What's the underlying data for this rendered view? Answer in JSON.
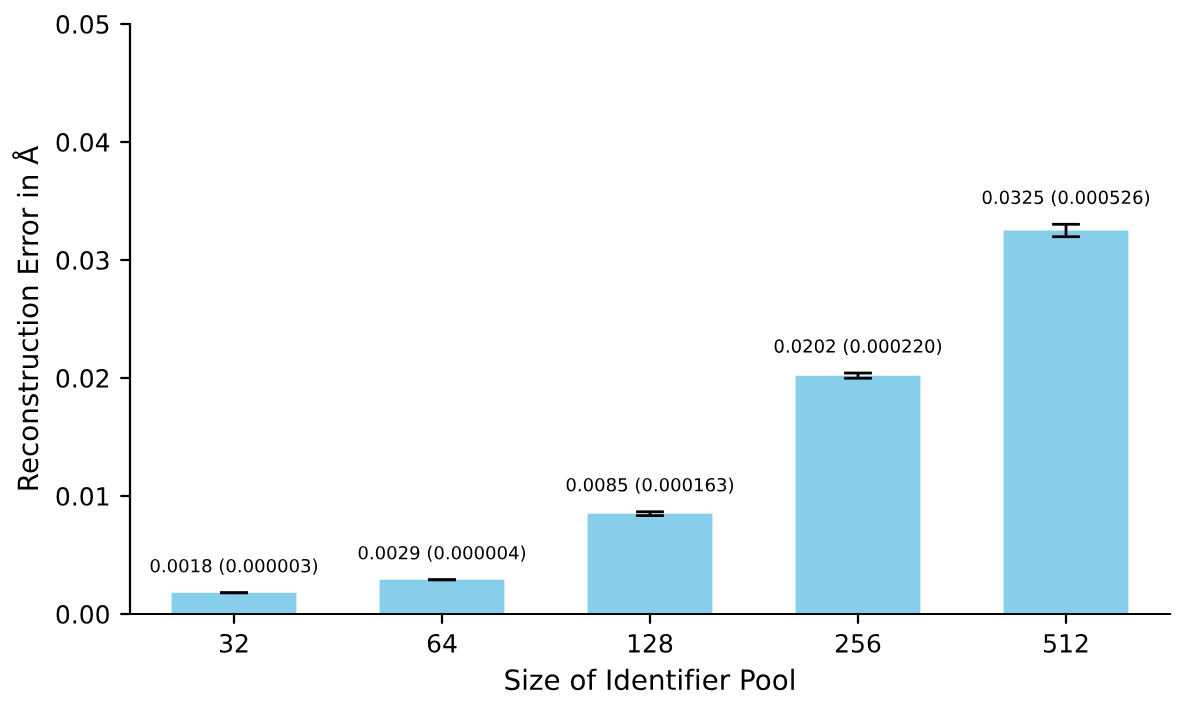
{
  "chart_data": {
    "type": "bar",
    "xlabel": "Size of Identifier Pool",
    "ylabel": "Reconstruction Error in Å",
    "categories": [
      "32",
      "64",
      "128",
      "256",
      "512"
    ],
    "values": [
      0.0018,
      0.0029,
      0.0085,
      0.0202,
      0.0325
    ],
    "errors": [
      3e-06,
      4e-06,
      0.000163,
      0.00022,
      0.000526
    ],
    "value_labels": [
      "0.0018 (0.000003)",
      "0.0029 (0.000004)",
      "0.0085 (0.000163)",
      "0.0202 (0.000220)",
      "0.0325 (0.000526)"
    ],
    "color": "#87ceeb",
    "ylim": [
      0,
      0.05
    ],
    "yticks": [
      {
        "value": 0,
        "label": "0.00"
      },
      {
        "value": 0.01,
        "label": "0.01"
      },
      {
        "value": 0.02,
        "label": "0.02"
      },
      {
        "value": 0.03,
        "label": "0.03"
      },
      {
        "value": 0.04,
        "label": "0.04"
      },
      {
        "value": 0.05,
        "label": "0.05"
      }
    ],
    "grid": false
  }
}
